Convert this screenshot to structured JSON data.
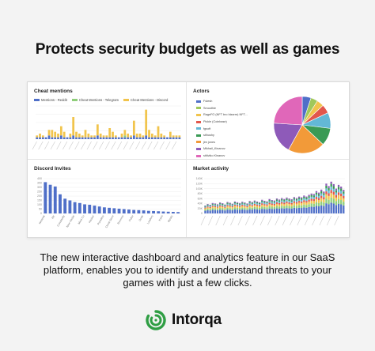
{
  "headline": "Protects security budgets as well as games",
  "panels": {
    "cheat": {
      "title": "Cheat mentions",
      "legend": [
        {
          "label": "Mentions - Reddit",
          "color": "#4f6fc8"
        },
        {
          "label": "Cheat Mentions - Telegram",
          "color": "#8fce7a"
        },
        {
          "label": "Cheat Mentions - Discord",
          "color": "#f1c44c"
        }
      ]
    },
    "actors": {
      "title": "Actors",
      "items": [
        {
          "label": "Fulesh",
          "color": "#4f6fc8"
        },
        {
          "label": "Smoothie",
          "color": "#a0c85a"
        },
        {
          "label": "RageFO (NFT bro bizarre) NFT...",
          "color": "#f1c44c"
        },
        {
          "label": "Pickle (Coinbase)",
          "color": "#e2574c"
        },
        {
          "label": "fgsoft",
          "color": "#63b8d6"
        },
        {
          "label": "stihushy",
          "color": "#3a9a55"
        },
        {
          "label": "jim jones",
          "color": "#f29a39"
        },
        {
          "label": "Mikhail_Kinanov",
          "color": "#8e5ab9"
        },
        {
          "label": "stitiviko Kinanov",
          "color": "#e067b9"
        }
      ]
    },
    "discord": {
      "title": "Discord Invites"
    },
    "market": {
      "title": "Market activity"
    }
  },
  "body_text": "The new interactive dashboard and analytics feature in our SaaS platform, enables you to identify and understand threats to your games with just a few clicks.",
  "brand": {
    "name": "Intorqa",
    "color": "#2f9e44"
  },
  "chart_data": [
    {
      "type": "bar",
      "title": "Cheat mentions",
      "stacked": true,
      "series": [
        {
          "name": "Mentions - Reddit",
          "values": [
            1,
            1,
            1,
            1,
            2,
            1,
            1,
            1,
            2,
            1,
            1,
            1,
            2,
            1,
            1,
            1,
            1,
            1,
            1,
            1,
            2,
            1,
            1,
            1,
            1,
            1,
            1,
            1,
            1,
            1,
            1,
            1,
            2,
            1,
            1,
            1,
            2,
            1,
            1,
            1,
            1,
            1,
            1,
            1,
            1,
            1,
            1,
            1
          ]
        },
        {
          "name": "Cheat Mentions - Telegram",
          "values": [
            0,
            0,
            0,
            0,
            0,
            0,
            0,
            0,
            0,
            0,
            0,
            0,
            0,
            0,
            0,
            0,
            0,
            0,
            0,
            0,
            0,
            0,
            0,
            0,
            0,
            0,
            0,
            0,
            0,
            1,
            0,
            0,
            0,
            0,
            0,
            0,
            0,
            0,
            0,
            0,
            0,
            0,
            0,
            0,
            0,
            0,
            0,
            0
          ]
        },
        {
          "name": "Cheat Mentions - Discord",
          "values": [
            1,
            2,
            1,
            0,
            3,
            4,
            3,
            2,
            5,
            3,
            0,
            2,
            10,
            3,
            2,
            1,
            4,
            2,
            1,
            1,
            6,
            2,
            1,
            1,
            5,
            3,
            1,
            0,
            2,
            3,
            2,
            1,
            8,
            2,
            2,
            1,
            14,
            4,
            2,
            1,
            6,
            2,
            1,
            0,
            3,
            1,
            1,
            1
          ]
        }
      ],
      "ylim": [
        0,
        18
      ]
    },
    {
      "type": "pie",
      "title": "Actors",
      "categories": [
        "Fulesh",
        "Smoothie",
        "RageFO (NFT bro bizarre) NFT...",
        "Pickle (Coinbase)",
        "fgsoft",
        "stihushy",
        "jim jones",
        "Mikhail_Kinanov",
        "stitiviko Kinanov"
      ],
      "values": [
        5,
        4,
        4,
        5,
        9,
        10,
        21,
        18,
        24
      ]
    },
    {
      "type": "bar",
      "title": "Discord Invites",
      "categories": [
        "Nestrick",
        "ML Spectre",
        "RK",
        "Cult 33",
        "Constantly",
        "Cosmic",
        "Nine Hacks",
        "Cheat Ops",
        "Mind Co",
        "Deadside",
        "Hacker",
        "R6 Cheats",
        "Paradise",
        "Wraith",
        "Cheat Store",
        "Nexus",
        "Reverse",
        "Cheatcord",
        "Pulse",
        "Zero",
        "Gods",
        "Invoke",
        "Loaders",
        "Dribble",
        "Kami",
        "Vault",
        "Mystic",
        "Storm"
      ],
      "values": [
        360,
        330,
        310,
        220,
        170,
        150,
        130,
        120,
        105,
        100,
        90,
        80,
        70,
        65,
        60,
        55,
        50,
        45,
        40,
        38,
        35,
        30,
        28,
        25,
        22,
        20,
        18,
        16
      ],
      "ylim": [
        0,
        400
      ],
      "yticks": [
        "0",
        "50",
        "100",
        "150",
        "200",
        "250",
        "300",
        "350",
        "400"
      ]
    },
    {
      "type": "bar",
      "title": "Market activity",
      "stacked": true,
      "colors": [
        "#4f6fc8",
        "#8fce7a",
        "#f1c44c",
        "#e2574c",
        "#63b8d6",
        "#3a9a55",
        "#8e5ab9"
      ],
      "totals": [
        32,
        38,
        35,
        42,
        40,
        37,
        44,
        41,
        36,
        46,
        43,
        39,
        48,
        45,
        42,
        47,
        44,
        40,
        50,
        46,
        52,
        48,
        45,
        55,
        51,
        49,
        58,
        54,
        52,
        60,
        56,
        62,
        58,
        64,
        60,
        57,
        66,
        62,
        68,
        65,
        72,
        68,
        75,
        80,
        78,
        90,
        84,
        96,
        88,
        120,
        110,
        128,
        118,
        100,
        115,
        108,
        95
      ],
      "ylim": [
        0,
        140
      ],
      "yticks": [
        "0",
        "20K",
        "40K",
        "60K",
        "80K",
        "100K",
        "120K",
        "140K"
      ]
    }
  ]
}
